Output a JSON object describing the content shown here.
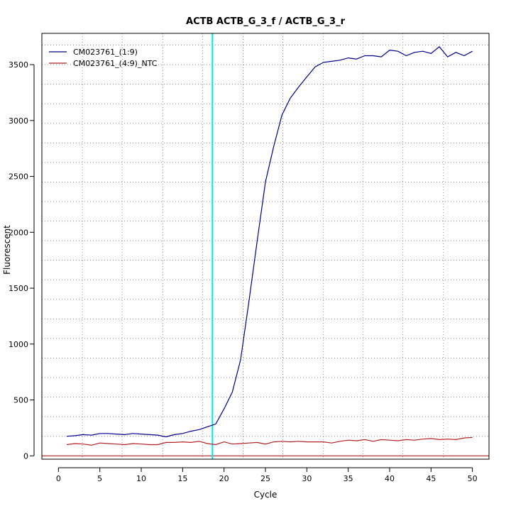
{
  "chart_data": {
    "type": "line",
    "title": "ACTB  ACTB_G_3_f / ACTB_G_3_r",
    "xlabel": "Cycle",
    "ylabel": "Fluorescent",
    "xlim": [
      -2,
      52
    ],
    "ylim": [
      -30,
      3780
    ],
    "xticks": [
      0,
      5,
      10,
      15,
      20,
      25,
      30,
      35,
      40,
      45,
      50
    ],
    "yticks": [
      0,
      500,
      1000,
      1500,
      2000,
      2500,
      3000,
      3500
    ],
    "grid": true,
    "vgrid_x": [
      2.9,
      7.7,
      12.6,
      17.4,
      22.3,
      27.1,
      32.0,
      36.8,
      41.6,
      46.5
    ],
    "hgrid_y": [
      175,
      350,
      525,
      700,
      875,
      1050,
      1225,
      1400,
      1575,
      1750,
      1925,
      2100,
      2275,
      2450,
      2625,
      2800,
      2975,
      3150,
      3325,
      3500,
      3675
    ],
    "threshold_cycle": 18.6,
    "threshold_color": "#00e5ee",
    "baseline_color": "#a00000",
    "legend_position": "top-left",
    "series": [
      {
        "name": "CM023761_(1:9)",
        "color": "#00008b",
        "x": [
          1,
          2,
          3,
          4,
          5,
          6,
          7,
          8,
          9,
          10,
          11,
          12,
          13,
          14,
          15,
          16,
          17,
          18,
          19,
          20,
          21,
          22,
          23,
          24,
          25,
          26,
          27,
          28,
          29,
          30,
          31,
          32,
          33,
          34,
          35,
          36,
          37,
          38,
          39,
          40,
          41,
          42,
          43,
          44,
          45,
          46,
          47,
          48,
          49,
          50
        ],
        "values": [
          175,
          180,
          190,
          185,
          200,
          200,
          195,
          190,
          200,
          195,
          190,
          185,
          170,
          190,
          200,
          220,
          235,
          260,
          285,
          420,
          570,
          860,
          1380,
          1920,
          2450,
          2770,
          3050,
          3200,
          3300,
          3390,
          3480,
          3520,
          3530,
          3540,
          3560,
          3550,
          3580,
          3580,
          3570,
          3630,
          3620,
          3580,
          3610,
          3620,
          3600,
          3660,
          3570,
          3610,
          3580,
          3620
        ]
      },
      {
        "name": "CM023761_(4:9)_NTC",
        "color": "#b22222",
        "x": [
          1,
          2,
          3,
          4,
          5,
          6,
          7,
          8,
          9,
          10,
          11,
          12,
          13,
          14,
          15,
          16,
          17,
          18,
          19,
          20,
          21,
          22,
          23,
          24,
          25,
          26,
          27,
          28,
          29,
          30,
          31,
          32,
          33,
          34,
          35,
          36,
          37,
          38,
          39,
          40,
          41,
          42,
          43,
          44,
          45,
          46,
          47,
          48,
          49,
          50
        ],
        "values": [
          100,
          110,
          105,
          95,
          115,
          110,
          105,
          100,
          110,
          105,
          100,
          100,
          120,
          120,
          125,
          120,
          130,
          110,
          100,
          125,
          105,
          110,
          115,
          120,
          105,
          125,
          130,
          125,
          130,
          125,
          125,
          125,
          115,
          130,
          140,
          135,
          145,
          130,
          145,
          140,
          135,
          145,
          140,
          150,
          155,
          145,
          150,
          145,
          160,
          165
        ]
      }
    ]
  }
}
